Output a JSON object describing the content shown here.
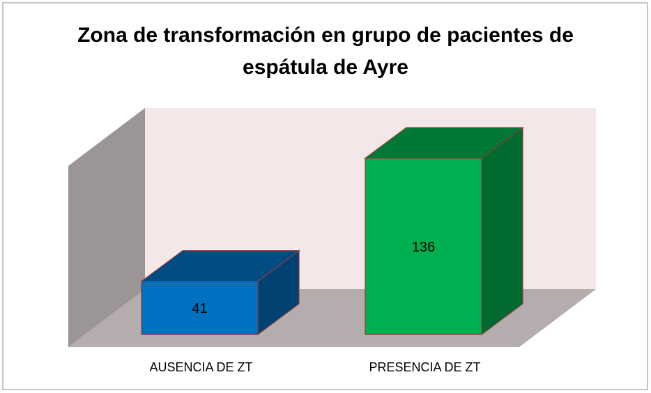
{
  "chart_data": {
    "type": "bar3d",
    "title": "Zona de transformación en grupo de pacientes de espátula de Ayre",
    "categories": [
      "AUSENCIA DE ZT",
      "PRESENCIA DE ZT"
    ],
    "values": [
      41,
      136
    ],
    "colors": [
      "#0070c0",
      "#00b050"
    ]
  }
}
